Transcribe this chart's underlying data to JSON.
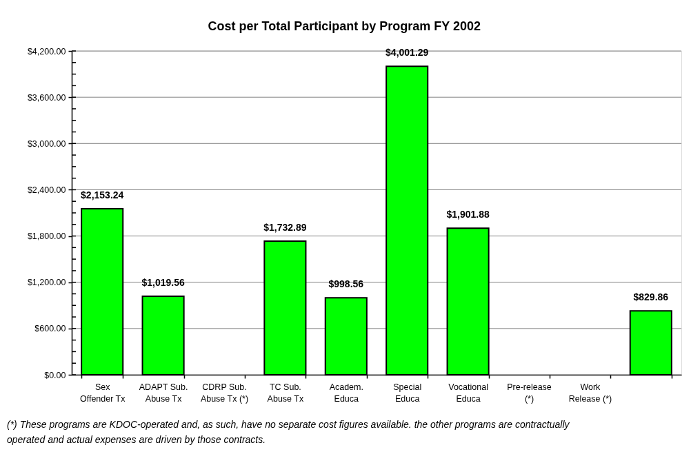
{
  "chart_data": {
    "type": "bar",
    "title": "Cost per Total Participant by Program FY 2002",
    "categories": [
      "Sex\nOffender Tx",
      "ADAPT Sub.\nAbuse Tx",
      "CDRP Sub.\nAbuse Tx (*)",
      "TC Sub.\nAbuse Tx",
      "Academ.\nEduca",
      "Special\nEduca",
      "Vocational\nEduca",
      "Pre-release\n(*)",
      "Work\nRelease (*)",
      null
    ],
    "values": [
      2153.24,
      1019.56,
      null,
      1732.89,
      998.56,
      4001.29,
      1901.88,
      null,
      null,
      829.86
    ],
    "value_labels": [
      "$2,153.24",
      "$1,019.56",
      null,
      "$1,732.89",
      "$998.56",
      "$4,001.29",
      "$1,901.88",
      null,
      null,
      "$829.86"
    ],
    "color": "#00ff00",
    "ylim": [
      0,
      4200
    ],
    "yticks": [
      {
        "value": 0,
        "label": "$0.00"
      },
      {
        "value": 150,
        "label": null
      },
      {
        "value": 300,
        "label": null
      },
      {
        "value": 450,
        "label": null
      },
      {
        "value": 600,
        "label": "$600.00"
      },
      {
        "value": 750,
        "label": null
      },
      {
        "value": 900,
        "label": null
      },
      {
        "value": 1050,
        "label": null
      },
      {
        "value": 1200,
        "label": "$1,200.00"
      },
      {
        "value": 1350,
        "label": null
      },
      {
        "value": 1500,
        "label": null
      },
      {
        "value": 1650,
        "label": null
      },
      {
        "value": 1800,
        "label": "$1,800.00"
      },
      {
        "value": 1950,
        "label": null
      },
      {
        "value": 2100,
        "label": null
      },
      {
        "value": 2250,
        "label": null
      },
      {
        "value": 2400,
        "label": "$2,400.00"
      },
      {
        "value": 2550,
        "label": null
      },
      {
        "value": 2700,
        "label": null
      },
      {
        "value": 2850,
        "label": null
      },
      {
        "value": 3000,
        "label": "$3,000.00"
      },
      {
        "value": 3150,
        "label": null
      },
      {
        "value": 3300,
        "label": null
      },
      {
        "value": 3450,
        "label": null
      },
      {
        "value": 3600,
        "label": "$3,600.00"
      },
      {
        "value": 3750,
        "label": null
      },
      {
        "value": 3900,
        "label": null
      },
      {
        "value": 4050,
        "label": null
      },
      {
        "value": 4200,
        "label": "$4,200.00"
      }
    ],
    "grid": "y",
    "annotations": [
      "(*) These programs are KDOC-operated and, as such, have no separate cost figures available. the other programs are contractually operated and actual expenses are driven by those contracts."
    ]
  }
}
